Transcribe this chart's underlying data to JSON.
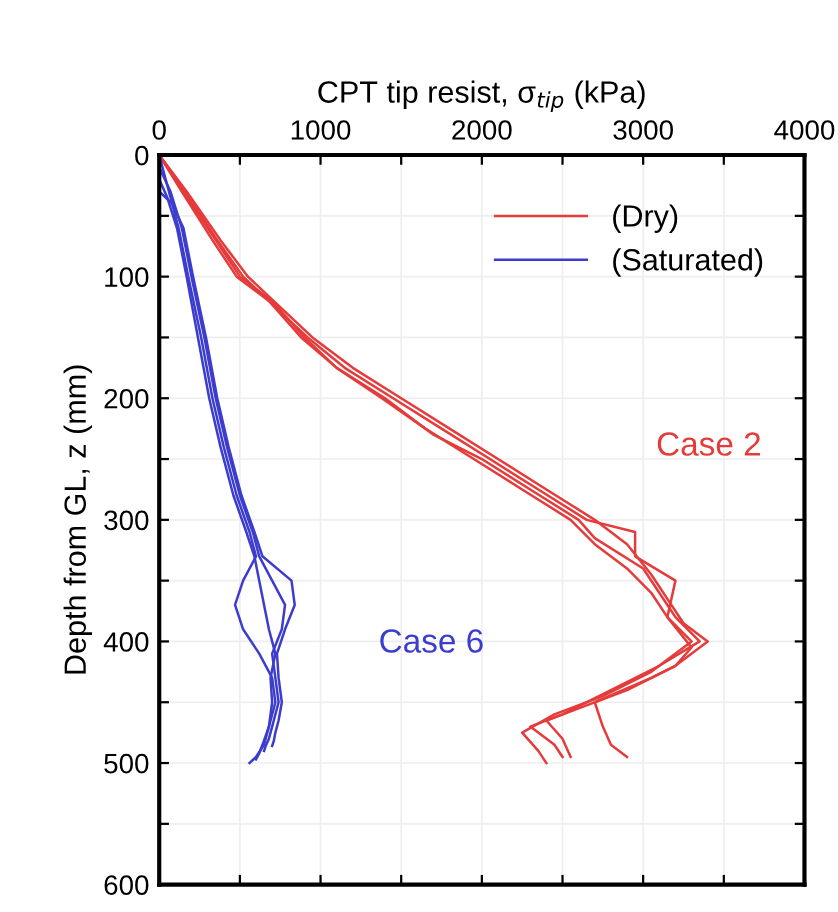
{
  "chart_data": {
    "type": "line",
    "xlabel": "CPT tip resist, σ$_{tip}$ (kPa)",
    "ylabel": "Depth from GL, z (mm)",
    "xlim": [
      0,
      4000
    ],
    "ylim": [
      600,
      0
    ],
    "xticks": [
      0,
      {
        "value": 500,
        "label": null
      },
      1000,
      {
        "value": 1500,
        "label": null
      },
      2000,
      {
        "value": 2500,
        "label": null
      },
      3000,
      {
        "value": 3500,
        "label": null
      },
      4000
    ],
    "yticks": [
      0,
      {
        "value": 50,
        "label": null
      },
      100,
      {
        "value": 150,
        "label": null
      },
      200,
      {
        "value": 250,
        "label": null
      },
      300,
      {
        "value": 350,
        "label": null
      },
      400,
      {
        "value": 450,
        "label": null
      },
      500,
      {
        "value": 550,
        "label": null
      },
      600
    ],
    "grid": true,
    "legend": "top right",
    "line_style": "solid",
    "marker": "none",
    "series": [
      {
        "name": "(Dry)",
        "color": "#e53b3b",
        "x": [
          0,
          150,
          350,
          500,
          700,
          900,
          1100,
          1400,
          1700,
          2000,
          2300,
          2600,
          2700,
          3000,
          3100,
          3200,
          3350,
          3100,
          2800,
          2500,
          2300,
          2450,
          2500
        ],
        "values": [
          0,
          30,
          70,
          100,
          120,
          150,
          175,
          200,
          230,
          250,
          275,
          300,
          315,
          340,
          360,
          380,
          400,
          420,
          440,
          460,
          470,
          485,
          495
        ]
      },
      {
        "color": "#e53b3b",
        "x": [
          0,
          170,
          380,
          550,
          750,
          950,
          1200,
          1500,
          1800,
          2100,
          2400,
          2700,
          2900,
          3050,
          3150,
          3250,
          3400,
          3200,
          2900,
          2600,
          2400,
          2500,
          2550
        ],
        "values": [
          0,
          30,
          70,
          100,
          125,
          150,
          175,
          200,
          225,
          250,
          275,
          300,
          320,
          345,
          365,
          385,
          400,
          420,
          440,
          455,
          465,
          480,
          495
        ]
      },
      {
        "color": "#e53b3b",
        "x": [
          0,
          160,
          360,
          520,
          720,
          920,
          1150,
          1450,
          1750,
          2050,
          2350,
          2650,
          2950,
          2950,
          3200,
          3150,
          3300,
          3200,
          3050,
          2700,
          2750,
          2800,
          2900
        ],
        "values": [
          0,
          30,
          70,
          100,
          125,
          150,
          175,
          200,
          225,
          250,
          275,
          300,
          310,
          330,
          350,
          380,
          405,
          420,
          430,
          450,
          470,
          485,
          495
        ]
      },
      {
        "color": "#e53b3b",
        "x": [
          0,
          140,
          330,
          480,
          680,
          880,
          1100,
          1380,
          1650,
          1950,
          2250,
          2550,
          2700,
          2900,
          3050,
          3150,
          3300,
          3050,
          2750,
          2450,
          2250,
          2350,
          2400
        ],
        "values": [
          0,
          30,
          70,
          100,
          120,
          150,
          175,
          200,
          225,
          250,
          275,
          300,
          320,
          340,
          360,
          380,
          400,
          425,
          445,
          460,
          475,
          490,
          500
        ]
      },
      {
        "name": "(Saturated)",
        "color": "#3c3ccf",
        "x": [
          0,
          60,
          120,
          180,
          260,
          330,
          400,
          480,
          560,
          600,
          520,
          470,
          520,
          620,
          700,
          720,
          680,
          650,
          600,
          560
        ],
        "values": [
          0,
          30,
          60,
          100,
          150,
          200,
          240,
          280,
          310,
          330,
          350,
          370,
          390,
          410,
          430,
          450,
          470,
          485,
          495,
          500
        ]
      },
      {
        "color": "#3c3ccf",
        "x": [
          0,
          70,
          140,
          200,
          280,
          350,
          420,
          500,
          580,
          620,
          700,
          780,
          760,
          700,
          720,
          740,
          700,
          680,
          660,
          650
        ],
        "values": [
          10,
          30,
          60,
          100,
          150,
          200,
          240,
          280,
          310,
          330,
          350,
          370,
          390,
          410,
          430,
          450,
          470,
          480,
          486,
          490
        ]
      },
      {
        "color": "#3c3ccf",
        "x": [
          0,
          50,
          110,
          170,
          240,
          310,
          380,
          460,
          540,
          590,
          620,
          650,
          680,
          720,
          690,
          700,
          680,
          640,
          620,
          600
        ],
        "values": [
          20,
          35,
          60,
          100,
          150,
          200,
          240,
          280,
          310,
          330,
          350,
          370,
          390,
          410,
          430,
          450,
          470,
          485,
          492,
          497
        ]
      },
      {
        "color": "#3c3ccf",
        "x": [
          0,
          80,
          150,
          210,
          290,
          360,
          430,
          510,
          590,
          640,
          820,
          840,
          780,
          730,
          740,
          760,
          740,
          720,
          710,
          700
        ],
        "values": [
          30,
          40,
          60,
          100,
          150,
          200,
          240,
          280,
          310,
          330,
          350,
          370,
          390,
          410,
          430,
          450,
          465,
          475,
          482,
          486
        ]
      }
    ],
    "annotations": [
      "Case 2",
      "Case 6"
    ]
  }
}
